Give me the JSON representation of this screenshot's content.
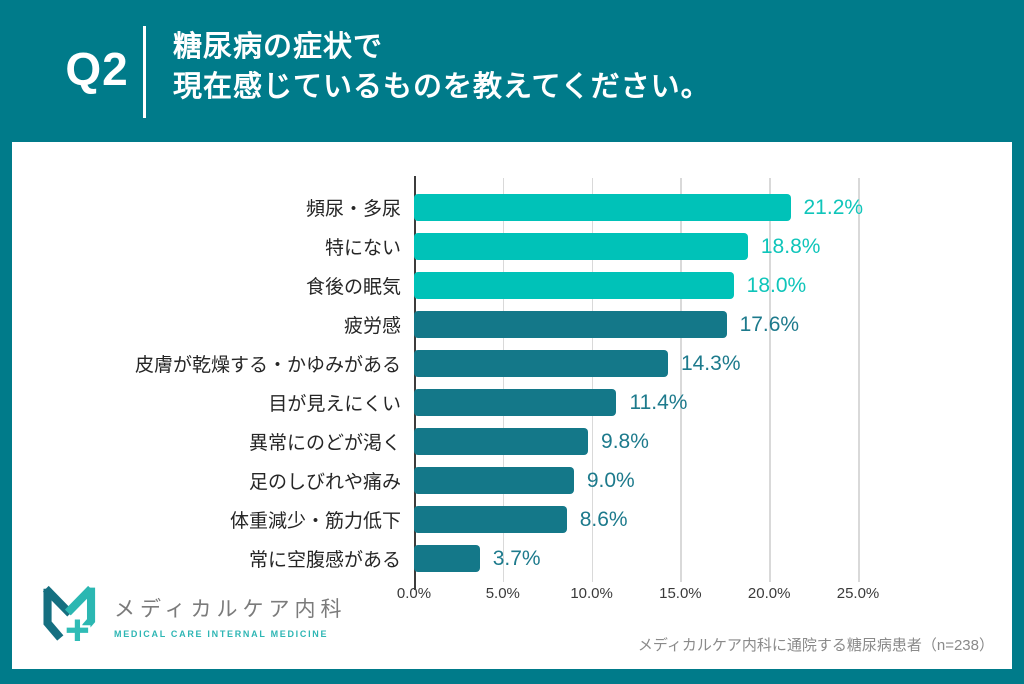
{
  "colors": {
    "background_teal": "#007b8a",
    "bar_highlight": "#00c2b8",
    "bar_default": "#147889",
    "value_text_highlight": "#0fc5ba",
    "value_text_default": "#1d7a8c",
    "grid_line": "#d9d9d9",
    "axis_line": "#3c3c3c"
  },
  "header": {
    "question_number": "Q2",
    "title_lines": [
      "糖尿病の症状で",
      "現在感じているものを教えてください。"
    ]
  },
  "chart_data": {
    "type": "bar",
    "orientation": "horizontal",
    "title": "糖尿病の症状で現在感じているものを教えてください。",
    "categories": [
      "頻尿・多尿",
      "特にない",
      "食後の眠気",
      "疲労感",
      "皮膚が乾燥する・かゆみがある",
      "目が見えにくい",
      "異常にのどが渇く",
      "足のしびれや痛み",
      "体重減少・筋力低下",
      "常に空腹感がある"
    ],
    "values": [
      21.2,
      18.8,
      18.0,
      17.6,
      14.3,
      11.4,
      9.8,
      9.0,
      8.6,
      3.7
    ],
    "value_labels": [
      "21.2%",
      "18.8%",
      "18.0%",
      "17.6%",
      "14.3%",
      "11.4%",
      "9.8%",
      "9.0%",
      "8.6%",
      "3.7%"
    ],
    "highlight_top_n": 3,
    "xlabel": "",
    "ylabel": "",
    "xlim": [
      0,
      25
    ],
    "x_ticks": [
      "0.0%",
      "5.0%",
      "10.0%",
      "15.0%",
      "20.0%",
      "25.0%"
    ],
    "grid": true,
    "legend": false
  },
  "footer": {
    "logo": {
      "name_jp": "メディカルケア内科",
      "name_en": "MEDICAL CARE INTERNAL MEDICINE"
    },
    "source_note": "メディカルケア内科に通院する糖尿病患者（n=238）"
  }
}
